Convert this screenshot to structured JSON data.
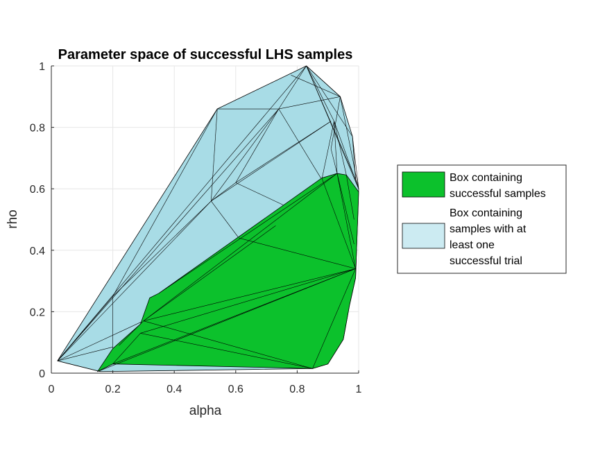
{
  "chart_data": {
    "type": "area",
    "title": "Parameter space of successful LHS samples",
    "xlabel": "alpha",
    "ylabel": "rho",
    "xlim": [
      0,
      1
    ],
    "ylim": [
      0,
      1
    ],
    "xticks": [
      "0",
      "0.2",
      "0.4",
      "0.6",
      "0.8",
      "1"
    ],
    "yticks": [
      "0",
      "0.2",
      "0.4",
      "0.6",
      "0.8",
      "1"
    ],
    "grid": true,
    "legend_position": "outside-right",
    "series": [
      {
        "name": "Box containing successful samples",
        "color": "#0CC12C",
        "points": [
          [
            0.15,
            0.005
          ],
          [
            0.2,
            0.03
          ],
          [
            0.85,
            0.015
          ],
          [
            0.9,
            0.03
          ],
          [
            0.95,
            0.11
          ],
          [
            0.97,
            0.22
          ],
          [
            0.99,
            0.31
          ],
          [
            1.0,
            0.59
          ],
          [
            0.96,
            0.645
          ],
          [
            0.93,
            0.65
          ],
          [
            0.88,
            0.635
          ],
          [
            0.35,
            0.26
          ],
          [
            0.32,
            0.245
          ],
          [
            0.29,
            0.16
          ],
          [
            0.2,
            0.08
          ]
        ],
        "edges": [
          [
            [
              0.15,
              0.005
            ],
            [
              0.99,
              0.34
            ]
          ],
          [
            [
              0.2,
              0.03
            ],
            [
              0.99,
              0.34
            ]
          ],
          [
            [
              0.85,
              0.015
            ],
            [
              0.99,
              0.34
            ]
          ],
          [
            [
              0.3,
              0.17
            ],
            [
              0.99,
              0.34
            ]
          ],
          [
            [
              0.3,
              0.17
            ],
            [
              0.85,
              0.015
            ]
          ],
          [
            [
              0.3,
              0.17
            ],
            [
              0.93,
              0.65
            ]
          ],
          [
            [
              0.3,
              0.17
            ],
            [
              0.73,
              0.48
            ]
          ],
          [
            [
              0.29,
              0.13
            ],
            [
              0.85,
              0.015
            ]
          ],
          [
            [
              0.29,
              0.13
            ],
            [
              0.99,
              0.34
            ]
          ],
          [
            [
              0.2,
              0.03
            ],
            [
              0.29,
              0.13
            ]
          ],
          [
            [
              0.22,
              0.09
            ],
            [
              0.3,
              0.17
            ]
          ],
          [
            [
              0.93,
              0.65
            ],
            [
              0.99,
              0.34
            ]
          ],
          [
            [
              0.61,
              0.44
            ],
            [
              0.99,
              0.34
            ]
          ],
          [
            [
              0.35,
              0.26
            ],
            [
              0.93,
              0.65
            ]
          ],
          [
            [
              0.88,
              0.635
            ],
            [
              0.99,
              0.34
            ]
          ],
          [
            [
              0.93,
              0.65
            ],
            [
              0.985,
              0.42
            ]
          ],
          [
            [
              0.96,
              0.645
            ],
            [
              0.985,
              0.5
            ]
          ]
        ]
      },
      {
        "name": "Box containing samples with at least one successful trial",
        "color": "#A8DCE6",
        "points": [
          [
            0.02,
            0.04
          ],
          [
            0.16,
            0.005
          ],
          [
            0.85,
            0.015
          ],
          [
            0.9,
            0.03
          ],
          [
            0.95,
            0.11
          ],
          [
            0.97,
            0.22
          ],
          [
            0.99,
            0.31
          ],
          [
            1.0,
            0.6
          ],
          [
            0.99,
            0.63
          ],
          [
            0.98,
            0.77
          ],
          [
            0.94,
            0.9
          ],
          [
            0.83,
            1.0
          ],
          [
            0.54,
            0.86
          ]
        ],
        "edges": [
          [
            [
              0.02,
              0.04
            ],
            [
              0.83,
              1.0
            ]
          ],
          [
            [
              0.02,
              0.04
            ],
            [
              0.74,
              0.86
            ]
          ],
          [
            [
              0.02,
              0.04
            ],
            [
              0.52,
              0.56
            ]
          ],
          [
            [
              0.02,
              0.04
            ],
            [
              0.2,
              0.25
            ]
          ],
          [
            [
              0.02,
              0.04
            ],
            [
              0.3,
              0.17
            ]
          ],
          [
            [
              0.02,
              0.04
            ],
            [
              0.2,
              0.085
            ]
          ],
          [
            [
              0.02,
              0.04
            ],
            [
              0.16,
              0.005
            ]
          ],
          [
            [
              0.2,
              0.25
            ],
            [
              0.54,
              0.86
            ]
          ],
          [
            [
              0.2,
              0.25
            ],
            [
              0.2,
              0.03
            ]
          ],
          [
            [
              0.2,
              0.25
            ],
            [
              0.52,
              0.56
            ]
          ],
          [
            [
              0.54,
              0.86
            ],
            [
              0.74,
              0.86
            ]
          ],
          [
            [
              0.54,
              0.86
            ],
            [
              0.52,
              0.56
            ]
          ],
          [
            [
              0.52,
              0.56
            ],
            [
              0.61,
              0.44
            ]
          ],
          [
            [
              0.52,
              0.56
            ],
            [
              0.6,
              0.62
            ]
          ],
          [
            [
              0.52,
              0.56
            ],
            [
              0.74,
              0.86
            ]
          ],
          [
            [
              0.52,
              0.56
            ],
            [
              0.91,
              0.82
            ]
          ],
          [
            [
              0.6,
              0.62
            ],
            [
              0.74,
              0.86
            ]
          ],
          [
            [
              0.6,
              0.62
            ],
            [
              0.77,
              0.54
            ]
          ],
          [
            [
              0.6,
              0.62
            ],
            [
              0.91,
              0.82
            ]
          ],
          [
            [
              0.74,
              0.86
            ],
            [
              0.83,
              1.0
            ]
          ],
          [
            [
              0.74,
              0.86
            ],
            [
              0.88,
              0.63
            ]
          ],
          [
            [
              0.74,
              0.86
            ],
            [
              0.94,
              0.9
            ]
          ],
          [
            [
              0.83,
              1.0
            ],
            [
              0.92,
              0.82
            ]
          ],
          [
            [
              0.83,
              1.0
            ],
            [
              0.94,
              0.9
            ]
          ],
          [
            [
              0.83,
              1.0
            ],
            [
              1.0,
              0.6
            ]
          ],
          [
            [
              0.83,
              1.0
            ],
            [
              0.98,
              0.77
            ]
          ],
          [
            [
              0.92,
              0.82
            ],
            [
              0.93,
              0.65
            ]
          ],
          [
            [
              0.92,
              0.82
            ],
            [
              0.96,
              0.645
            ]
          ],
          [
            [
              0.92,
              0.82
            ],
            [
              0.88,
              0.63
            ]
          ],
          [
            [
              0.92,
              0.82
            ],
            [
              1.0,
              0.6
            ]
          ],
          [
            [
              0.91,
              0.73
            ],
            [
              0.93,
              0.65
            ]
          ],
          [
            [
              0.91,
              0.73
            ],
            [
              0.94,
              0.9
            ]
          ],
          [
            [
              0.94,
              0.9
            ],
            [
              1.0,
              0.6
            ]
          ],
          [
            [
              0.98,
              0.77
            ],
            [
              1.0,
              0.6
            ]
          ],
          [
            [
              0.78,
              0.97
            ],
            [
              0.94,
              0.9
            ]
          ],
          [
            [
              0.83,
              1.0
            ],
            [
              0.99,
              0.63
            ]
          ]
        ]
      }
    ]
  }
}
